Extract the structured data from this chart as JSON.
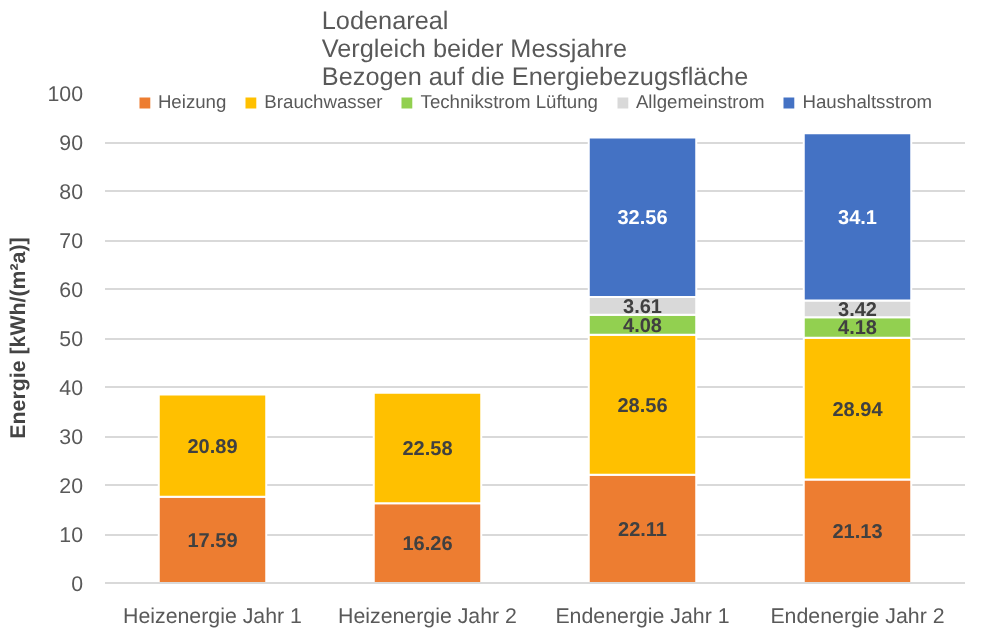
{
  "chart_data": {
    "type": "bar",
    "title": "Lodenareal",
    "subtitle": "Vergleich beider Messjahre\nBezogen auf die Energiebezugsfläche",
    "ylabel": "Energie [kWh/(m²a)]",
    "categories": [
      "Heizenergie Jahr 1",
      "Heizenergie Jahr 2",
      "Endenergie Jahr 1",
      "Endenergie Jahr 2"
    ],
    "stacked": true,
    "ylim": [
      0,
      100
    ],
    "yticks": [
      0,
      10,
      20,
      30,
      40,
      50,
      60,
      70,
      80,
      90,
      100
    ],
    "grid": "y",
    "legend": "top",
    "data_labels": true,
    "series": [
      {
        "name": "Heizung",
        "color": "#ed7d31",
        "values": [
          17.59,
          16.26,
          22.11,
          21.13
        ]
      },
      {
        "name": "Brauchwasser",
        "color": "#ffc000",
        "values": [
          20.89,
          22.58,
          28.56,
          28.94
        ]
      },
      {
        "name": "Technikstrom Lüftung",
        "color": "#92d050",
        "values": [
          null,
          null,
          4.08,
          4.18
        ]
      },
      {
        "name": "Allgemeinstrom",
        "color": "#d9d9d9",
        "values": [
          null,
          null,
          3.61,
          3.42
        ]
      },
      {
        "name": "Haushaltsstrom",
        "color": "#4472c4",
        "values": [
          null,
          null,
          32.56,
          34.1
        ]
      }
    ]
  }
}
